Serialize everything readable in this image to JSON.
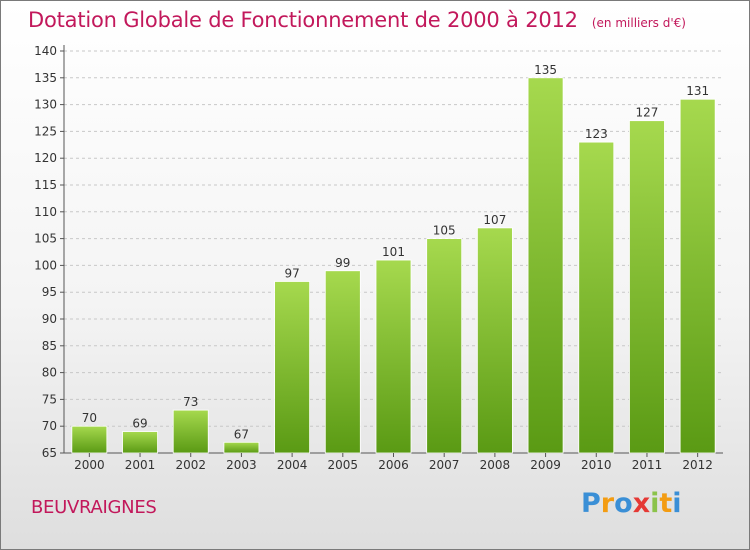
{
  "title": "Dotation Globale de Fonctionnement de 2000 à 2012",
  "subtitle": "(en milliers d'€)",
  "commune": "BEUVRAIGNES",
  "logo": {
    "text": "Proxiti",
    "letters": [
      "P",
      "r",
      "o",
      "x",
      "i",
      "t",
      "i"
    ],
    "colors": [
      "#3a8fd6",
      "#f39c12",
      "#3a8fd6",
      "#e53935",
      "#8bc34a",
      "#f39c12",
      "#3a8fd6"
    ]
  },
  "colors": {
    "title": "#c2185b",
    "bar_top": "#a6d94e",
    "bar_bottom": "#5a9a14",
    "grid": "#c8c8c8",
    "axis": "#555555"
  },
  "chart_data": {
    "type": "bar",
    "categories": [
      "2000",
      "2001",
      "2002",
      "2003",
      "2004",
      "2005",
      "2006",
      "2007",
      "2008",
      "2009",
      "2010",
      "2011",
      "2012"
    ],
    "values": [
      70,
      69,
      73,
      67,
      97,
      99,
      101,
      105,
      107,
      135,
      123,
      127,
      131
    ],
    "ylim": [
      65,
      140
    ],
    "yticks": [
      65,
      70,
      75,
      80,
      85,
      90,
      95,
      100,
      105,
      110,
      115,
      120,
      125,
      130,
      135,
      140
    ],
    "grid": true
  }
}
